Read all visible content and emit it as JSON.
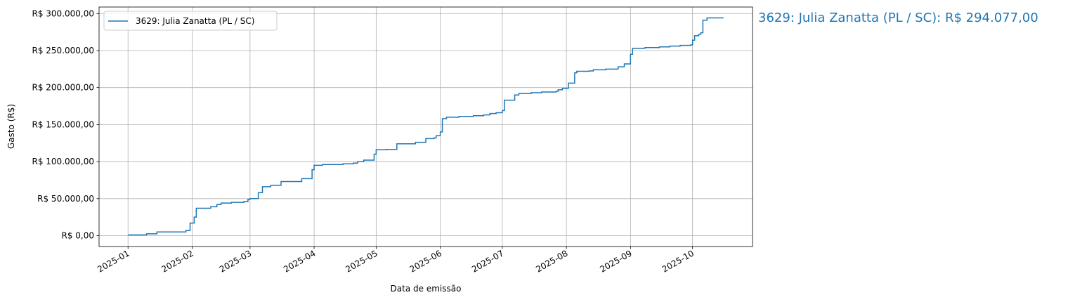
{
  "chart_data": {
    "type": "step",
    "xlabel": "Data de emissão",
    "ylabel": "Gasto (R$)",
    "annotation": "3629: Julia Zanatta (PL / SC): R$ 294.077,00",
    "legend": "upper left",
    "grid": true,
    "xlim": [
      "2024-12-18",
      "2025-10-30"
    ],
    "xticks": [
      "2025-01",
      "2025-02",
      "2025-03",
      "2025-04",
      "2025-05",
      "2025-06",
      "2025-07",
      "2025-08",
      "2025-09",
      "2025-10"
    ],
    "ylim": [
      -14704,
      308781
    ],
    "yticks": [
      {
        "value": 0,
        "label": "R$ 0,00"
      },
      {
        "value": 50000,
        "label": "R$ 50.000,00"
      },
      {
        "value": 100000,
        "label": "R$ 100.000,00"
      },
      {
        "value": 150000,
        "label": "R$ 150.000,00"
      },
      {
        "value": 200000,
        "label": "R$ 200.000,00"
      },
      {
        "value": 250000,
        "label": "R$ 250.000,00"
      },
      {
        "value": 300000,
        "label": "R$ 300.000,00"
      }
    ],
    "x": [
      "2025-01-01",
      "2025-01-10",
      "2025-01-15",
      "2025-01-29",
      "2025-01-31",
      "2025-02-02",
      "2025-02-03",
      "2025-02-10",
      "2025-02-13",
      "2025-02-15",
      "2025-02-20",
      "2025-02-26",
      "2025-02-28",
      "2025-03-01",
      "2025-03-05",
      "2025-03-07",
      "2025-03-11",
      "2025-03-16",
      "2025-03-26",
      "2025-03-31",
      "2025-04-01",
      "2025-04-05",
      "2025-04-15",
      "2025-04-20",
      "2025-04-22",
      "2025-04-25",
      "2025-04-30",
      "2025-05-01",
      "2025-05-06",
      "2025-05-11",
      "2025-05-20",
      "2025-05-25",
      "2025-05-29",
      "2025-05-30",
      "2025-06-01",
      "2025-06-02",
      "2025-06-04",
      "2025-06-10",
      "2025-06-17",
      "2025-06-22",
      "2025-06-25",
      "2025-06-28",
      "2025-07-01",
      "2025-07-02",
      "2025-07-07",
      "2025-07-09",
      "2025-07-15",
      "2025-07-20",
      "2025-07-27",
      "2025-07-28",
      "2025-07-30",
      "2025-08-02",
      "2025-08-05",
      "2025-08-06",
      "2025-08-12",
      "2025-08-14",
      "2025-08-20",
      "2025-08-26",
      "2025-08-29",
      "2025-09-01",
      "2025-09-02",
      "2025-09-08",
      "2025-09-15",
      "2025-09-20",
      "2025-09-25",
      "2025-09-30",
      "2025-10-01",
      "2025-10-02",
      "2025-10-04",
      "2025-10-05",
      "2025-10-06",
      "2025-10-08",
      "2025-10-16"
    ],
    "series": [
      {
        "name": "3629: Julia Zanatta (PL / SC)",
        "color": "#1f77b4",
        "values": [
          1000,
          2500,
          5000,
          7000,
          17000,
          25000,
          37000,
          39000,
          42000,
          44000,
          45000,
          46000,
          49000,
          50000,
          58000,
          66000,
          68000,
          73000,
          77000,
          89000,
          95000,
          96000,
          97000,
          98000,
          100000,
          102000,
          110000,
          116000,
          116500,
          124000,
          126000,
          131000,
          132000,
          135000,
          140000,
          158000,
          160000,
          161000,
          162000,
          163000,
          165000,
          166000,
          169000,
          183000,
          190000,
          192000,
          193000,
          194000,
          195000,
          197000,
          199000,
          206000,
          220000,
          222000,
          222500,
          224000,
          225000,
          228000,
          232000,
          245000,
          253000,
          254000,
          255000,
          256000,
          257000,
          257500,
          264000,
          270000,
          272000,
          274000,
          291000,
          294077,
          294077
        ]
      }
    ]
  }
}
